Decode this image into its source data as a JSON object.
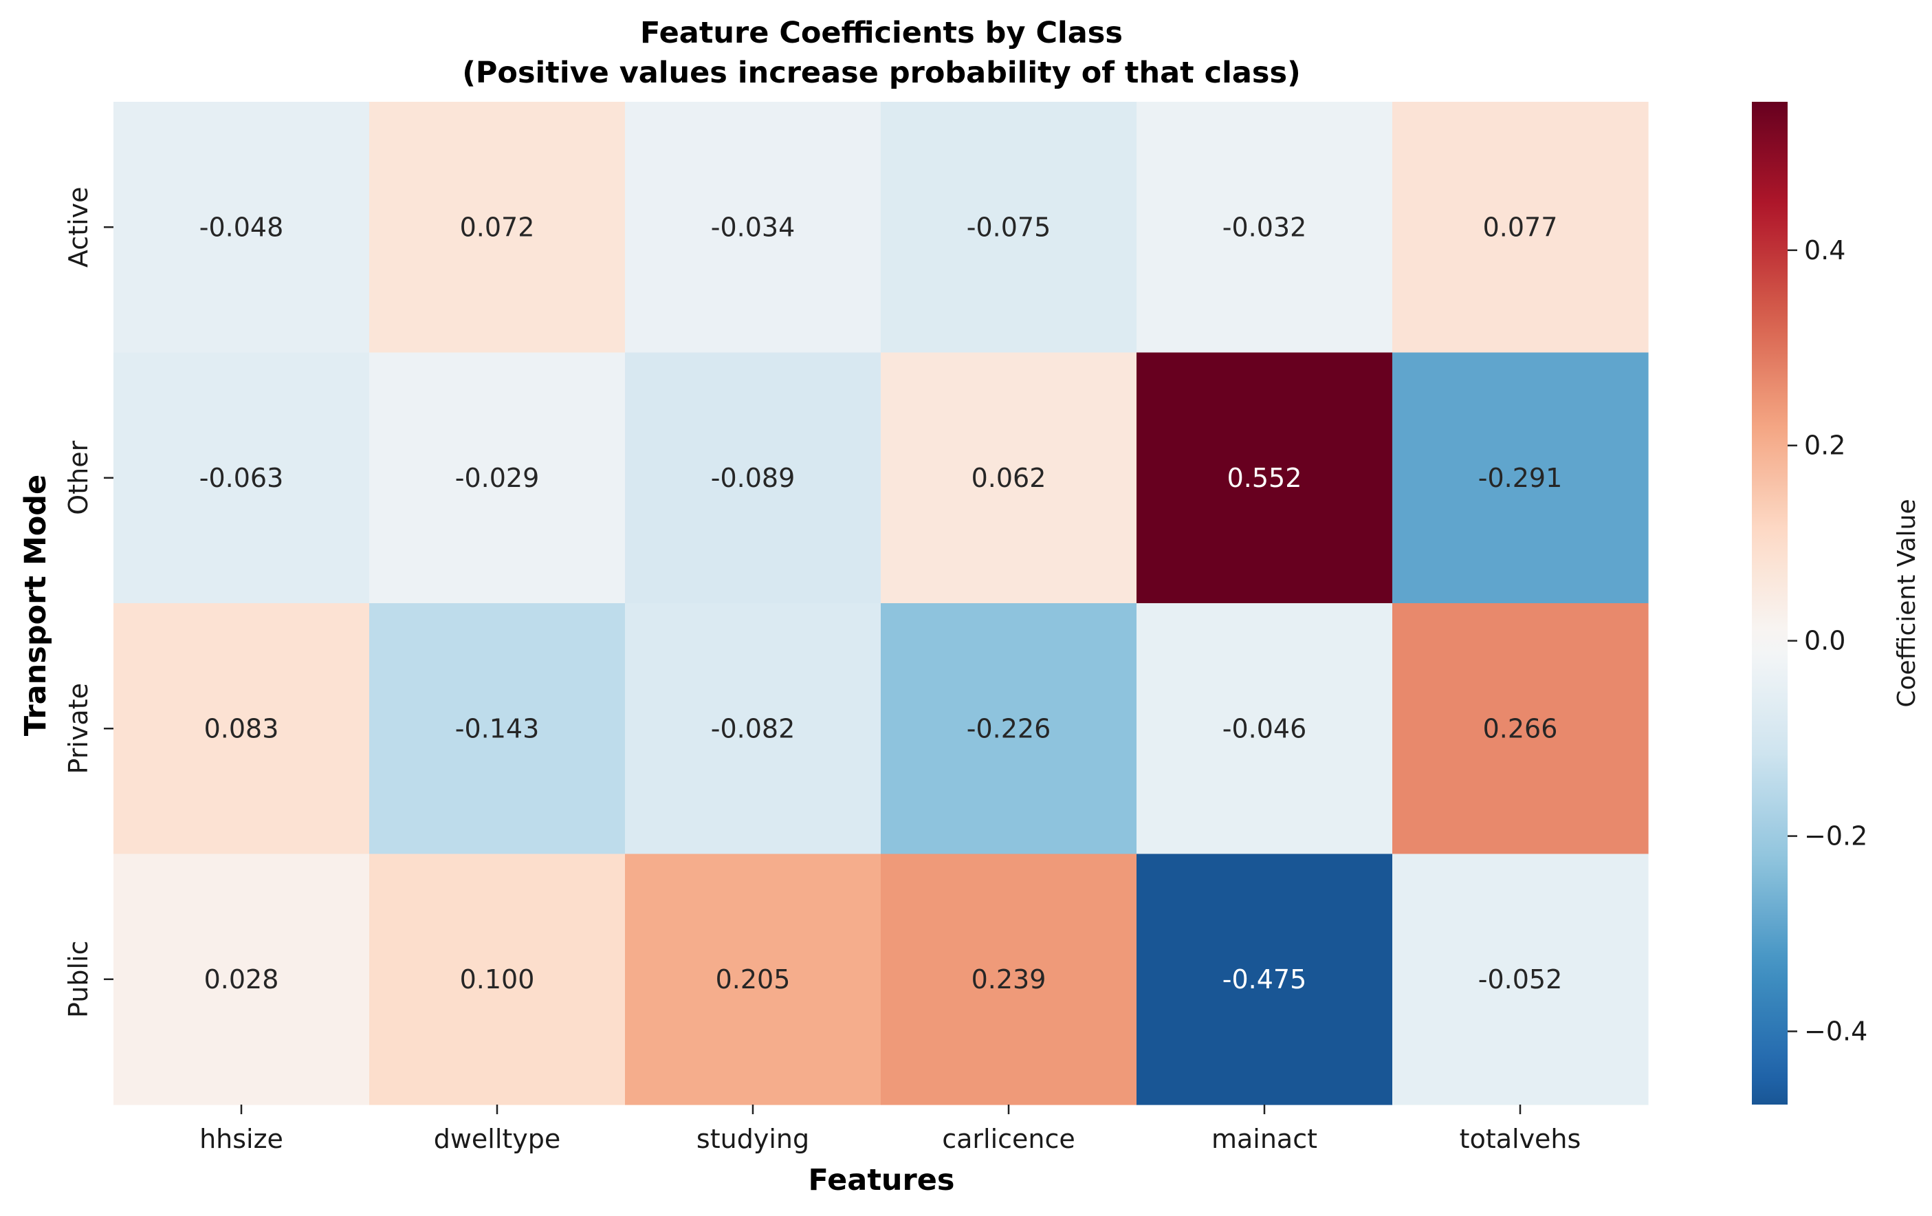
{
  "chart_data": {
    "type": "heatmap",
    "title": "Feature Coefficients by Class",
    "subtitle": "(Positive values increase probability of that class)",
    "xlabel": "Features",
    "ylabel": "Transport Mode",
    "x_categories": [
      "hhsize",
      "dwelltype",
      "studying",
      "carlicence",
      "mainact",
      "totalvehs"
    ],
    "y_categories": [
      "Active",
      "Other",
      "Private",
      "Public"
    ],
    "values": [
      [
        -0.048,
        0.072,
        -0.034,
        -0.075,
        -0.032,
        0.077
      ],
      [
        -0.063,
        -0.029,
        -0.089,
        0.062,
        0.552,
        -0.291
      ],
      [
        0.083,
        -0.143,
        -0.082,
        -0.226,
        -0.046,
        0.266
      ],
      [
        0.028,
        0.1,
        0.205,
        0.239,
        -0.475,
        -0.052
      ]
    ],
    "value_labels": [
      [
        "-0.048",
        "0.072",
        "-0.034",
        "-0.075",
        "-0.032",
        "0.077"
      ],
      [
        "-0.063",
        "-0.029",
        "-0.089",
        "0.062",
        "0.552",
        "-0.291"
      ],
      [
        "0.083",
        "-0.143",
        "-0.082",
        "-0.226",
        "-0.046",
        "0.266"
      ],
      [
        "0.028",
        "0.100",
        "0.205",
        "0.239",
        "-0.475",
        "-0.052"
      ]
    ],
    "colormap": "RdBu_r",
    "vmin": -0.475,
    "vmax": 0.552,
    "colorbar": {
      "label": "Coefficient Value",
      "ticks": [
        -0.4,
        -0.2,
        0.0,
        0.2,
        0.4
      ],
      "tick_labels": [
        "−0.4",
        "−0.2",
        "0.0",
        "0.2",
        "0.4"
      ]
    }
  }
}
